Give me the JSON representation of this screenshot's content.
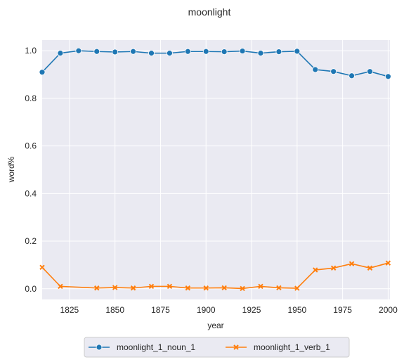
{
  "chart_data": {
    "type": "line",
    "title": "moonlight",
    "xlabel": "year",
    "ylabel": "word%",
    "xlim": [
      1810,
      2001
    ],
    "ylim": [
      -0.045,
      1.045
    ],
    "xticks": [
      1825,
      1850,
      1875,
      1900,
      1925,
      1950,
      1975,
      2000
    ],
    "yticks": [
      0.0,
      0.2,
      0.4,
      0.6,
      0.8,
      1.0
    ],
    "grid": true,
    "legend_position": "bottom-center",
    "x": [
      1810,
      1820,
      1830,
      1840,
      1850,
      1860,
      1870,
      1880,
      1890,
      1900,
      1910,
      1920,
      1930,
      1940,
      1950,
      1960,
      1970,
      1980,
      1990,
      2000
    ],
    "series": [
      {
        "name": "moonlight_1_noun_1",
        "color": "#1f77b4",
        "marker": "circle",
        "values": [
          0.91,
          0.99,
          1.0,
          0.997,
          0.995,
          0.997,
          0.99,
          0.99,
          0.997,
          0.997,
          0.996,
          0.999,
          0.99,
          0.996,
          0.998,
          0.921,
          0.913,
          0.895,
          0.913,
          0.892
        ]
      },
      {
        "name": "moonlight_1_verb_1",
        "color": "#ff7f0e",
        "marker": "x",
        "values": [
          0.09,
          0.01,
          null,
          0.003,
          0.005,
          0.003,
          0.01,
          0.01,
          0.003,
          0.003,
          0.004,
          0.001,
          0.01,
          0.004,
          0.002,
          0.079,
          0.087,
          0.105,
          0.087,
          0.108
        ]
      }
    ]
  }
}
